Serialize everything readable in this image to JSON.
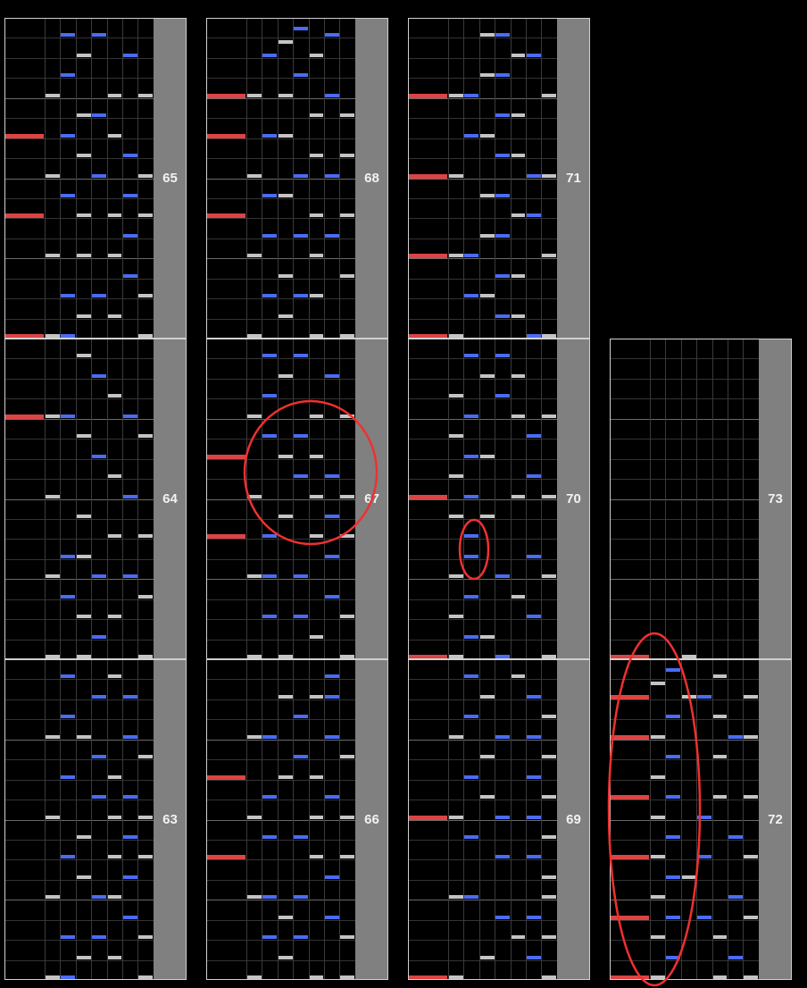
{
  "colors": {
    "scratch_note": "#dc4444",
    "white_key_note": "#c4c4c4",
    "blue_key_note": "#4a6cf5",
    "measure_number_bar": "#808080",
    "annotation": "#f03030"
  },
  "lane_order": [
    "S",
    "1",
    "2",
    "3",
    "4",
    "5",
    "6",
    "7"
  ],
  "columns": [
    [
      "65",
      "64",
      "63"
    ],
    [
      "68",
      "67",
      "66"
    ],
    [
      "71",
      "70",
      "69"
    ],
    [
      "73",
      "72"
    ]
  ],
  "measures": {
    "63": {
      "number": "63",
      "notes": [
        [
          15,
          "25"
        ],
        [
          14,
          "46"
        ],
        [
          13,
          "2"
        ],
        [
          12,
          "136"
        ],
        [
          11,
          "47"
        ],
        [
          10,
          "25"
        ],
        [
          9,
          "46"
        ],
        [
          8,
          "157"
        ],
        [
          7,
          "36"
        ],
        [
          6,
          "257"
        ],
        [
          5,
          "36"
        ],
        [
          4,
          "145"
        ],
        [
          3,
          "6"
        ],
        [
          2,
          "247"
        ],
        [
          1,
          "35"
        ],
        [
          0,
          "127"
        ]
      ]
    },
    "64": {
      "number": "64",
      "notes": [
        [
          15,
          "3"
        ],
        [
          14,
          "4"
        ],
        [
          13,
          "5"
        ],
        [
          12,
          "S126"
        ],
        [
          11,
          "37"
        ],
        [
          10,
          "4"
        ],
        [
          9,
          "5"
        ],
        [
          8,
          "16"
        ],
        [
          7,
          "3"
        ],
        [
          6,
          "57"
        ],
        [
          5,
          "23"
        ],
        [
          4,
          "146"
        ],
        [
          3,
          "27"
        ],
        [
          2,
          "35"
        ],
        [
          1,
          "4"
        ],
        [
          0,
          "137"
        ]
      ]
    },
    "65": {
      "number": "65",
      "notes": [
        [
          15,
          "24"
        ],
        [
          14,
          "36"
        ],
        [
          13,
          "2"
        ],
        [
          12,
          "157"
        ],
        [
          11,
          "34"
        ],
        [
          10,
          "S25"
        ],
        [
          9,
          "36"
        ],
        [
          8,
          "147"
        ],
        [
          7,
          "26"
        ],
        [
          6,
          "S357"
        ],
        [
          5,
          "6"
        ],
        [
          4,
          "135"
        ],
        [
          3,
          "6"
        ],
        [
          2,
          "247"
        ],
        [
          1,
          "35"
        ],
        [
          0,
          "S127"
        ]
      ]
    },
    "66": {
      "number": "66",
      "notes": [
        [
          15,
          "6"
        ],
        [
          14,
          "356"
        ],
        [
          13,
          "4"
        ],
        [
          12,
          "126"
        ],
        [
          11,
          "47"
        ],
        [
          10,
          "S35"
        ],
        [
          9,
          "26"
        ],
        [
          8,
          "157"
        ],
        [
          7,
          "24"
        ],
        [
          6,
          "S57"
        ],
        [
          5,
          "6"
        ],
        [
          4,
          "124"
        ],
        [
          3,
          "36"
        ],
        [
          2,
          "247"
        ],
        [
          1,
          "3"
        ],
        [
          0,
          "157"
        ]
      ]
    },
    "67": {
      "number": "67",
      "notes": [
        [
          15,
          "24"
        ],
        [
          14,
          "36"
        ],
        [
          13,
          "2"
        ],
        [
          12,
          "157"
        ],
        [
          11,
          "24"
        ],
        [
          10,
          "S35"
        ],
        [
          9,
          "46"
        ],
        [
          8,
          "157"
        ],
        [
          7,
          "36"
        ],
        [
          6,
          "S257"
        ],
        [
          5,
          "6"
        ],
        [
          4,
          "124"
        ],
        [
          3,
          "6"
        ],
        [
          2,
          "247"
        ],
        [
          1,
          "5"
        ],
        [
          0,
          "137"
        ]
      ]
    },
    "68": {
      "number": "68",
      "notes": [
        [
          15.33,
          "4"
        ],
        [
          15,
          "6"
        ],
        [
          14.67,
          "3"
        ],
        [
          14,
          "25"
        ],
        [
          13,
          "4"
        ],
        [
          12,
          "S136"
        ],
        [
          11,
          "57"
        ],
        [
          10,
          "S23"
        ],
        [
          9,
          "57"
        ],
        [
          8,
          "146"
        ],
        [
          7,
          "23"
        ],
        [
          6,
          "S57"
        ],
        [
          5,
          "246"
        ],
        [
          4,
          "15"
        ],
        [
          3,
          "37"
        ],
        [
          2,
          "245"
        ],
        [
          1,
          "3"
        ],
        [
          0,
          "157"
        ]
      ]
    },
    "69": {
      "number": "69",
      "notes": [
        [
          15,
          "25"
        ],
        [
          14,
          "36"
        ],
        [
          13,
          "27"
        ],
        [
          12,
          "146"
        ],
        [
          11,
          "37"
        ],
        [
          10,
          "26"
        ],
        [
          9,
          "37"
        ],
        [
          8,
          "S146"
        ],
        [
          7,
          "27"
        ],
        [
          6,
          "46"
        ],
        [
          5,
          "7"
        ],
        [
          4,
          "127"
        ],
        [
          3,
          "46"
        ],
        [
          2,
          "57"
        ],
        [
          1,
          "36"
        ],
        [
          0,
          "S17"
        ]
      ]
    },
    "70": {
      "number": "70",
      "notes": [
        [
          15,
          "24"
        ],
        [
          14,
          "35"
        ],
        [
          13,
          "14"
        ],
        [
          12,
          "257"
        ],
        [
          11,
          "16"
        ],
        [
          10,
          "23"
        ],
        [
          9,
          "16"
        ],
        [
          8,
          "S257"
        ],
        [
          7,
          "13"
        ],
        [
          6,
          "2"
        ],
        [
          5,
          "26"
        ],
        [
          4,
          "147"
        ],
        [
          3,
          "25"
        ],
        [
          2,
          "16"
        ],
        [
          1,
          "23"
        ],
        [
          0,
          "S147"
        ]
      ]
    },
    "71": {
      "number": "71",
      "notes": [
        [
          15,
          "34"
        ],
        [
          14,
          "56"
        ],
        [
          13,
          "34"
        ],
        [
          12,
          "S127"
        ],
        [
          11,
          "45"
        ],
        [
          10,
          "23"
        ],
        [
          9,
          "45"
        ],
        [
          8,
          "S167"
        ],
        [
          7,
          "34"
        ],
        [
          6,
          "56"
        ],
        [
          5,
          "34"
        ],
        [
          4,
          "S127"
        ],
        [
          3,
          "45"
        ],
        [
          2,
          "23"
        ],
        [
          1,
          "45"
        ],
        [
          0,
          "S167"
        ]
      ]
    },
    "72": {
      "number": "72",
      "notes": [
        [
          15.33,
          "2"
        ],
        [
          15,
          "5"
        ],
        [
          14.67,
          "1"
        ],
        [
          14,
          "S347"
        ],
        [
          13,
          "25"
        ],
        [
          12,
          "S167"
        ],
        [
          11,
          "25"
        ],
        [
          10,
          "1"
        ],
        [
          9,
          "S257"
        ],
        [
          8,
          "14"
        ],
        [
          7,
          "26"
        ],
        [
          6,
          "S147"
        ],
        [
          5,
          "23"
        ],
        [
          4,
          "16"
        ],
        [
          3,
          "S247"
        ],
        [
          2,
          "15"
        ],
        [
          1,
          "26"
        ],
        [
          0,
          "S157"
        ]
      ]
    },
    "73": {
      "number": "73",
      "notes": [
        [
          0,
          "S3"
        ]
      ]
    }
  }
}
